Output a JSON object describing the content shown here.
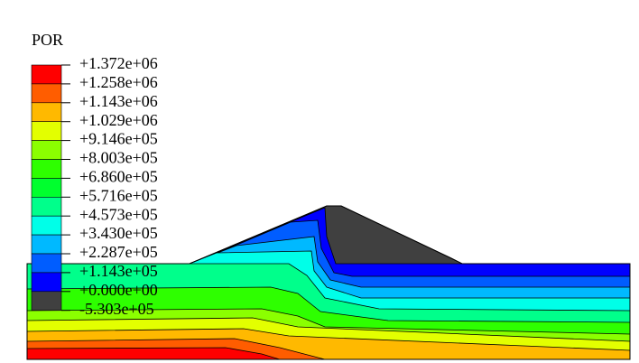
{
  "legend": {
    "title": "POR",
    "labels": [
      "+1.372e+06",
      "+1.258e+06",
      "+1.143e+06",
      "+1.029e+06",
      "+9.146e+05",
      "+8.003e+05",
      "+6.860e+05",
      "+5.716e+05",
      "+4.573e+05",
      "+3.430e+05",
      "+2.287e+05",
      "+1.143e+05",
      "+0.000e+00",
      "-5.303e+05"
    ],
    "colors": [
      "#ff0000",
      "#ff5d00",
      "#ffb900",
      "#e3ff00",
      "#8bff00",
      "#2eff00",
      "#00ff2e",
      "#00ff8b",
      "#00ffe8",
      "#00b9ff",
      "#005dff",
      "#0000ff",
      "#404040"
    ]
  }
}
